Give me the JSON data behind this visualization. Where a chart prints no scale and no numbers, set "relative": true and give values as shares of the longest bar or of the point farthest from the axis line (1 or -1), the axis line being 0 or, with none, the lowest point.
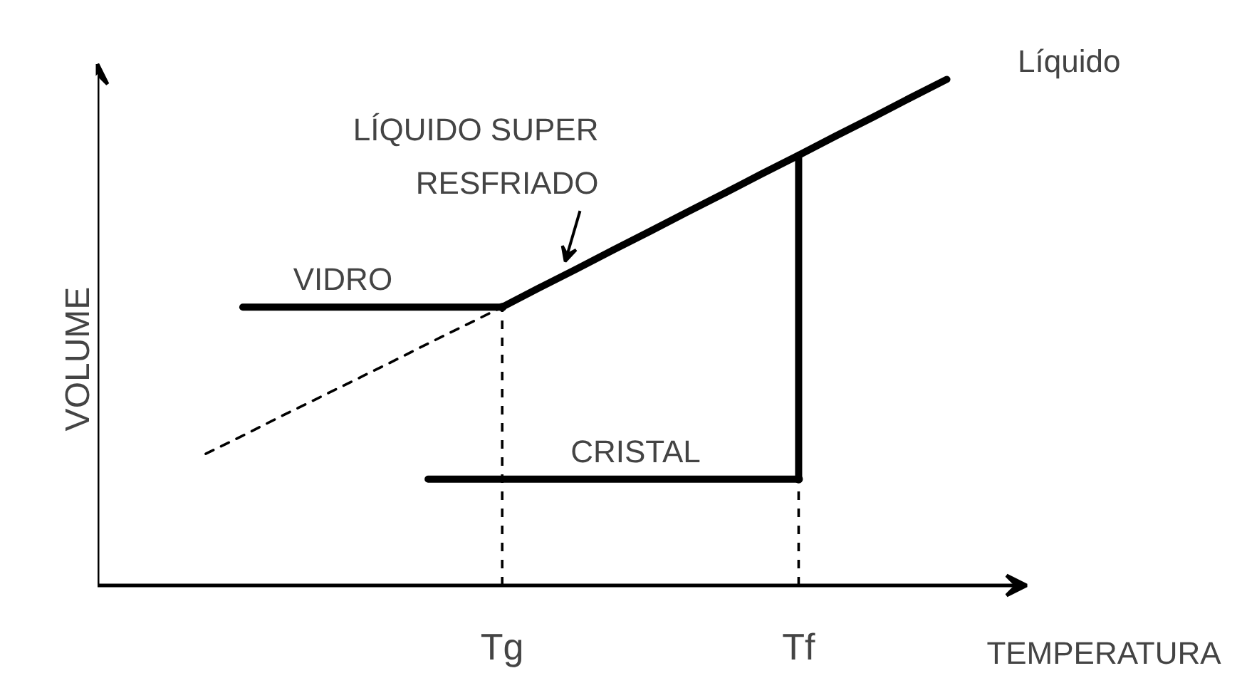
{
  "chart_data": {
    "type": "line",
    "relative": true,
    "xlabel": "TEMPERATURA",
    "ylabel": "VOLUME",
    "categories": [
      null,
      null,
      null,
      null,
      null,
      null,
      null,
      null,
      "Tg",
      null,
      null,
      null,
      null,
      null,
      null,
      null,
      "Tf",
      null,
      null,
      null,
      null
    ],
    "grid": false,
    "marker": "none",
    "series": [
      {
        "color": "#000000",
        "line_style": "solid",
        "values": [
          null,
          0.55,
          0.55,
          0.55,
          0.55,
          0.55,
          0.55,
          0.55,
          0.55,
          null,
          null,
          null,
          null,
          null,
          null,
          null,
          null,
          null,
          null,
          null,
          null
        ]
      },
      {
        "color": "#000000",
        "line_style": "dashed",
        "values": [
          0.26,
          0.296,
          0.333,
          0.369,
          0.405,
          0.441,
          0.478,
          0.514,
          0.55,
          null,
          null,
          null,
          null,
          null,
          null,
          null,
          null,
          null,
          null,
          null,
          null
        ]
      },
      {
        "color": "#000000",
        "line_style": "solid",
        "values": [
          null,
          null,
          null,
          null,
          null,
          null,
          null,
          null,
          0.55,
          0.588,
          0.625,
          0.663,
          0.7,
          0.738,
          0.775,
          0.813,
          0.85,
          0.888,
          0.925,
          0.963,
          1.0
        ]
      },
      {
        "type": "step",
        "color": "#000000",
        "line_style": "solid",
        "values": [
          null,
          null,
          null,
          null,
          null,
          null,
          0.21,
          0.21,
          0.21,
          0.21,
          0.21,
          0.21,
          0.21,
          0.21,
          0.21,
          0.21,
          0.85,
          null,
          null,
          null,
          null
        ]
      },
      {
        "type": "lollipop",
        "color": "#000000",
        "line_style": "dashed",
        "marker": "circle",
        "values": [
          null,
          null,
          null,
          null,
          null,
          null,
          null,
          null,
          0.55,
          null,
          null,
          null,
          null,
          null,
          null,
          null,
          0.21,
          null,
          null,
          null,
          null
        ]
      }
    ],
    "annotations": [
      "VIDRO",
      "LÍQUIDO SUPER\nRESFRIADO",
      "CRISTAL",
      "Líquido"
    ]
  }
}
